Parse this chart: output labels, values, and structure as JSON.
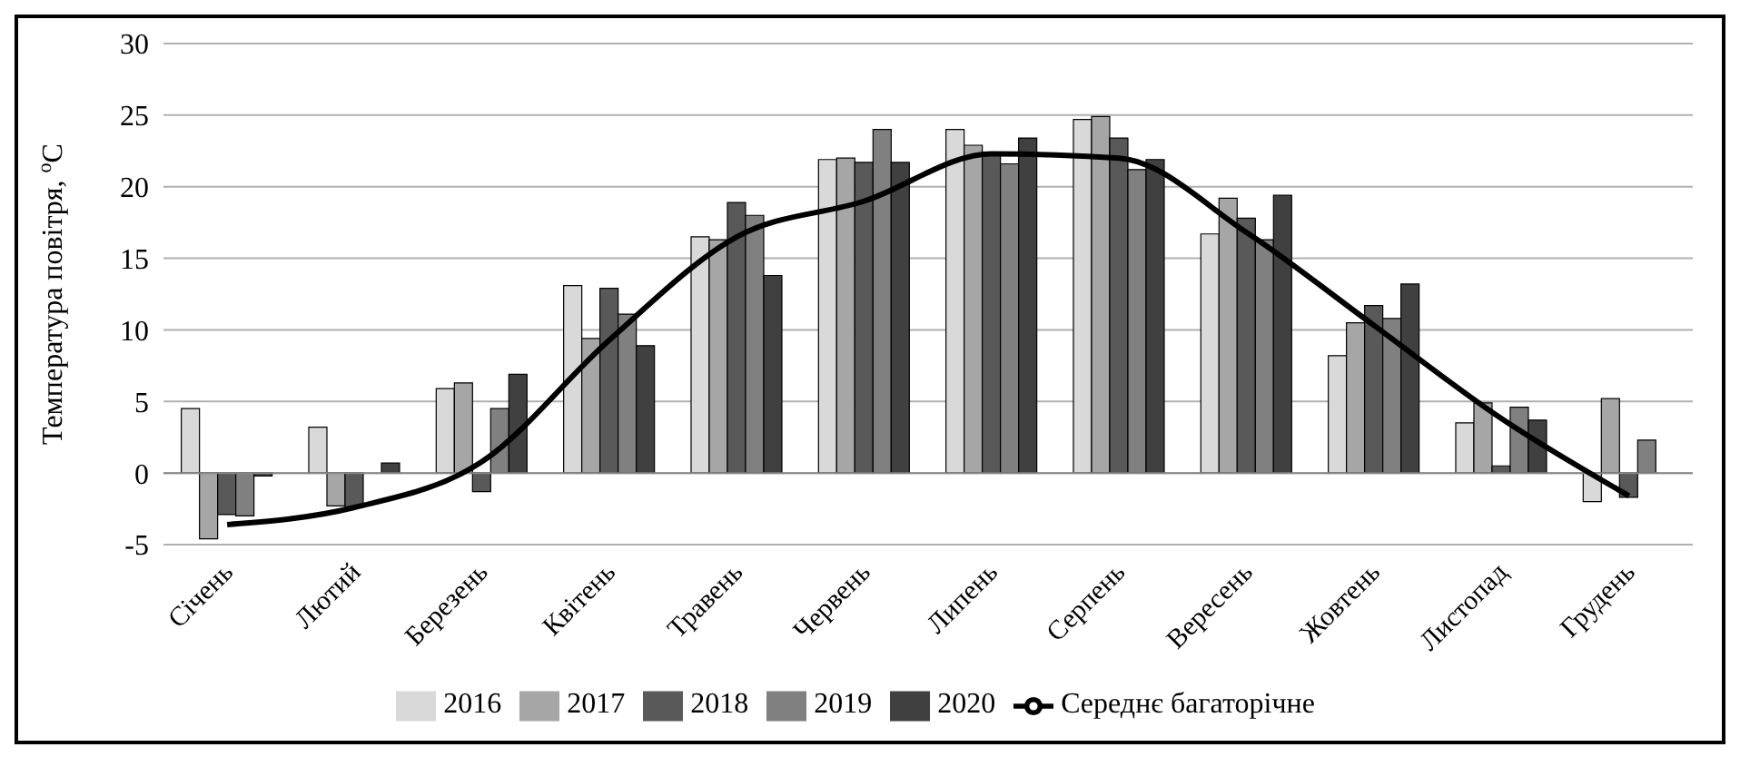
{
  "chart_data": {
    "type": "bar",
    "ylabel": "Температура повітря, $^{o}$C",
    "categories": [
      "Січень",
      "Лютий",
      "Березень",
      "Квітень",
      "Травень",
      "Червень",
      "Липень",
      "Серпень",
      "Вересень",
      "Жовтень",
      "Листопад",
      "Грудень"
    ],
    "series": [
      {
        "name": "2016",
        "color": "#d9d9d9",
        "values": [
          4.5,
          3.2,
          5.9,
          13.1,
          16.5,
          21.9,
          24.0,
          24.7,
          16.7,
          8.2,
          3.5,
          -2.0
        ]
      },
      {
        "name": "2017",
        "color": "#a6a6a6",
        "values": [
          -4.6,
          -2.3,
          6.3,
          9.4,
          16.3,
          22.0,
          22.9,
          24.9,
          19.2,
          10.5,
          4.9,
          5.2
        ]
      },
      {
        "name": "2018",
        "color": "#595959",
        "values": [
          -2.9,
          -2.4,
          -1.3,
          12.9,
          18.9,
          21.7,
          22.4,
          23.4,
          17.8,
          11.7,
          0.5,
          -1.7
        ]
      },
      {
        "name": "2019",
        "color": "#808080",
        "values": [
          -3.0,
          0,
          4.5,
          11.1,
          18.0,
          24.0,
          21.6,
          21.2,
          16.3,
          10.8,
          4.6,
          2.3
        ]
      },
      {
        "name": "2020",
        "color": "#404040",
        "values": [
          -0.2,
          0.7,
          6.9,
          8.9,
          13.8,
          21.7,
          23.4,
          21.9,
          19.4,
          13.2,
          3.7,
          null
        ]
      },
      {
        "name": "Середнє багаторічне",
        "type": "line",
        "color": "#000000",
        "values": [
          -3.6,
          -2.4,
          0.8,
          9.3,
          16.5,
          19.0,
          22.3,
          22.0,
          16.8,
          10.3,
          3.8,
          -1.6
        ]
      }
    ],
    "ylim": [
      -5,
      30
    ],
    "yticks": [
      -5,
      0,
      5,
      10,
      15,
      20,
      25,
      30
    ],
    "grid": "y",
    "legend": "bottom",
    "marker": "none"
  }
}
